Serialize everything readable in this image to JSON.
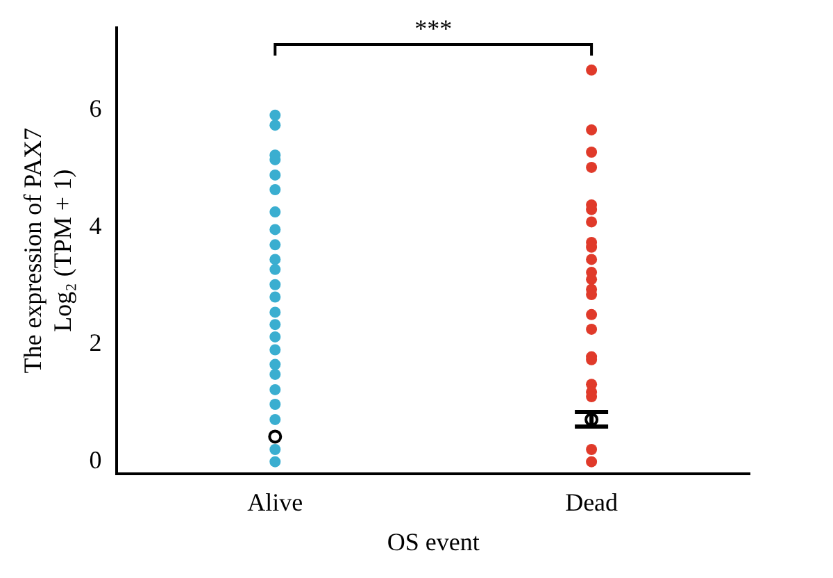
{
  "chart_data": {
    "type": "scatter",
    "xlabel": "OS event",
    "ylabel": "The expression of PAX7\nLog₂ (TPM + 1)",
    "categories": [
      "Alive",
      "Dead"
    ],
    "series": [
      {
        "color": "#3aaed0",
        "x": [
          "Alive",
          "Alive",
          "Alive",
          "Alive",
          "Alive",
          "Alive",
          "Alive",
          "Alive",
          "Alive",
          "Alive",
          "Alive",
          "Alive",
          "Alive",
          "Alive",
          "Alive",
          "Alive",
          "Alive",
          "Alive",
          "Alive",
          "Alive",
          "Alive",
          "Alive",
          "Alive",
          "Alive"
        ],
        "values": [
          5.91,
          5.74,
          5.15,
          5.23,
          4.89,
          4.64,
          4.26,
          3.96,
          3.7,
          3.45,
          3.28,
          3.02,
          2.81,
          2.55,
          2.34,
          2.13,
          1.91,
          1.66,
          1.49,
          1.23,
          0.98,
          0.72,
          0.21,
          0
        ]
      },
      {
        "color": "#e03a2a",
        "x": [
          "Dead",
          "Dead",
          "Dead",
          "Dead",
          "Dead",
          "Dead",
          "Dead",
          "Dead",
          "Dead",
          "Dead",
          "Dead",
          "Dead",
          "Dead",
          "Dead",
          "Dead",
          "Dead",
          "Dead",
          "Dead",
          "Dead",
          "Dead",
          "Dead",
          "Dead",
          "Dead"
        ],
        "values": [
          6.68,
          5.66,
          5.28,
          5.02,
          4.38,
          4.3,
          4.09,
          3.74,
          3.66,
          3.45,
          3.23,
          3.11,
          2.94,
          2.85,
          2.51,
          2.26,
          1.79,
          1.74,
          1.32,
          1.19,
          1.11,
          0.21,
          0
        ]
      },
      {
        "color": "#000000",
        "x": [
          "Alive",
          "Dead"
        ],
        "values": [
          0.43,
          0.72
        ],
        "errors": [
          null,
          [
            0.6,
            0.85
          ]
        ]
      }
    ],
    "ylim": [
      -0.2,
      7.4
    ],
    "yticks": [
      0,
      2,
      4,
      6
    ],
    "grid": false,
    "legend": false,
    "marker": "circle",
    "annotations": [
      "***"
    ]
  }
}
